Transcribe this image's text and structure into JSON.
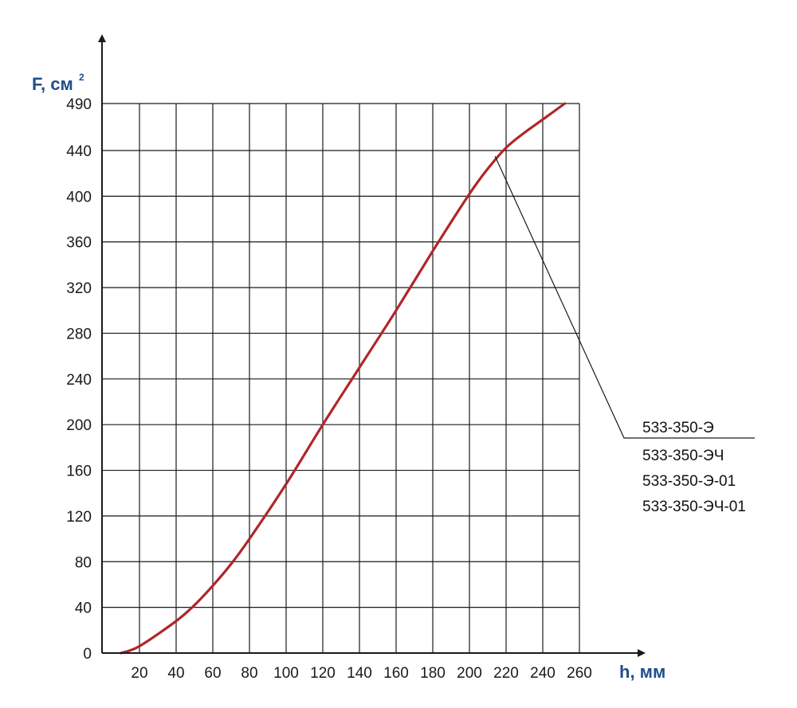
{
  "chart_data": {
    "type": "line",
    "ylabel": "F, см",
    "ylabel_superscript": "2",
    "xlabel": "h, мм",
    "x_ticks": [
      20,
      40,
      60,
      80,
      100,
      120,
      140,
      160,
      180,
      200,
      220,
      240,
      260
    ],
    "y_ticks": [
      0,
      40,
      80,
      120,
      160,
      200,
      240,
      280,
      320,
      360,
      400,
      440,
      490
    ],
    "xlim": [
      0,
      260
    ],
    "ylim": [
      0,
      490
    ],
    "grid": true,
    "series": [
      {
        "color": "#b0262a",
        "x": [
          10,
          20,
          40,
          50,
          60,
          70,
          80,
          100,
          120,
          140,
          160,
          180,
          200,
          210,
          220,
          230,
          240,
          252
        ],
        "y": [
          0,
          6,
          28,
          42,
          59,
          78,
          100,
          148,
          200,
          250,
          300,
          352,
          402,
          424,
          443,
          459,
          473,
          490
        ]
      }
    ],
    "annotation": {
      "target": {
        "x": 214,
        "y": 435
      },
      "labels": [
        "533-350-Э",
        "533-350-ЭЧ",
        "533-350-Э-01",
        "533-350-ЭЧ-01"
      ]
    },
    "colors": {
      "axis_title": "#1f4e8c",
      "curve": "#b0262a",
      "grid": "#1a1a1a"
    }
  }
}
